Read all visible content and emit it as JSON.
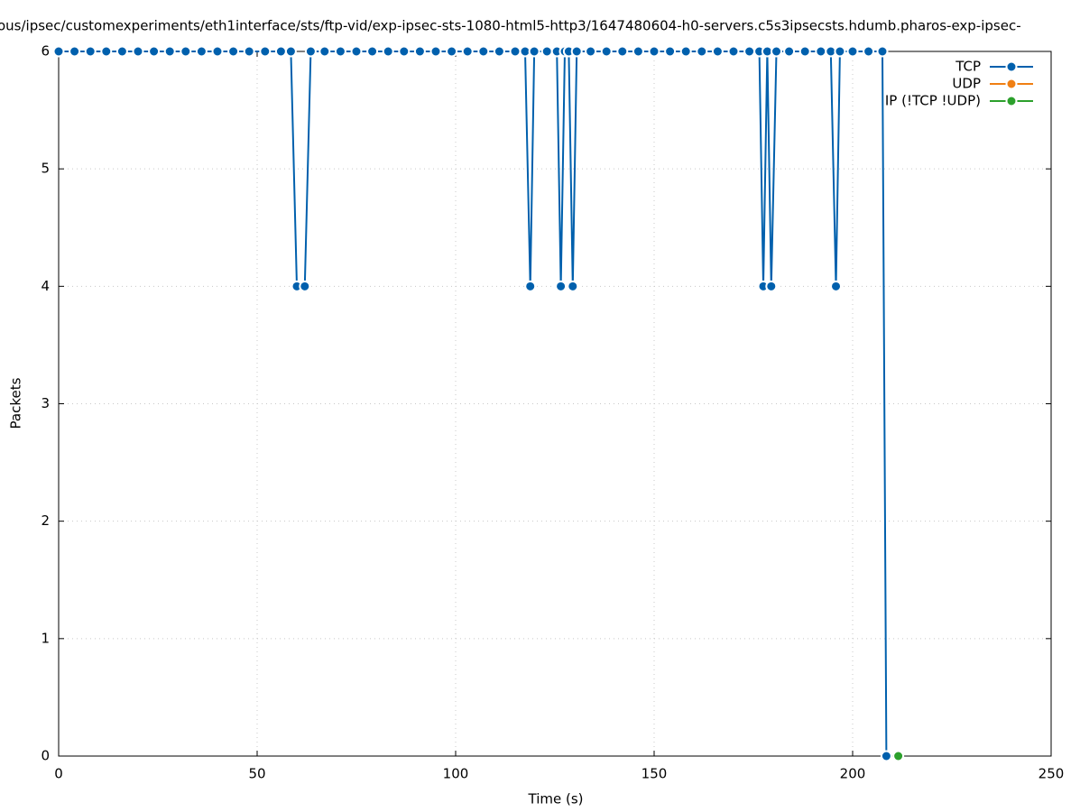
{
  "chart_data": {
    "type": "line",
    "title": "ous/ipsec/customexperiments/eth1interface/sts/ftp-vid/exp-ipsec-sts-1080-html5-http3/1647480604-h0-servers.c5s3ipsecsts.hdumb.pharos-exp-ipsec-",
    "xlabel": "Time (s)",
    "ylabel": "Packets",
    "xlim": [
      0,
      250
    ],
    "ylim": [
      0,
      6
    ],
    "xticks": [
      0,
      50,
      100,
      150,
      200,
      250
    ],
    "yticks": [
      0,
      1,
      2,
      3,
      4,
      5,
      6
    ],
    "grid": true,
    "legend": "top-right",
    "series": [
      {
        "name": "TCP",
        "color": "#0060ad",
        "x": [
          0,
          4,
          8,
          12,
          16,
          20,
          24,
          28,
          32,
          36,
          40,
          44,
          48,
          52,
          56,
          58.5,
          60,
          62,
          63.5,
          67,
          71,
          75,
          79,
          83,
          87,
          91,
          95,
          99,
          103,
          107,
          111,
          115,
          117.5,
          118.8,
          119.8,
          123,
          125.5,
          126.5,
          127.5,
          128.5,
          129.5,
          130.5,
          134,
          138,
          142,
          146,
          150,
          154,
          158,
          162,
          166,
          170,
          174,
          176.5,
          177.5,
          178.5,
          179.5,
          180.8,
          184,
          188,
          192,
          194.5,
          195.8,
          196.8,
          200,
          204,
          207.5,
          208.5
        ],
        "values": [
          6,
          6,
          6,
          6,
          6,
          6,
          6,
          6,
          6,
          6,
          6,
          6,
          6,
          6,
          6,
          6,
          4,
          4,
          6,
          6,
          6,
          6,
          6,
          6,
          6,
          6,
          6,
          6,
          6,
          6,
          6,
          6,
          6,
          4,
          6,
          6,
          6,
          4,
          6,
          6,
          4,
          6,
          6,
          6,
          6,
          6,
          6,
          6,
          6,
          6,
          6,
          6,
          6,
          6,
          4,
          6,
          4,
          6,
          6,
          6,
          6,
          6,
          4,
          6,
          6,
          6,
          6,
          0
        ]
      },
      {
        "name": "UDP",
        "color": "#f07f13",
        "x": [],
        "values": []
      },
      {
        "name": "IP (!TCP  !UDP)",
        "color": "#2ca02c",
        "x": [
          211.5
        ],
        "values": [
          0
        ]
      }
    ]
  }
}
